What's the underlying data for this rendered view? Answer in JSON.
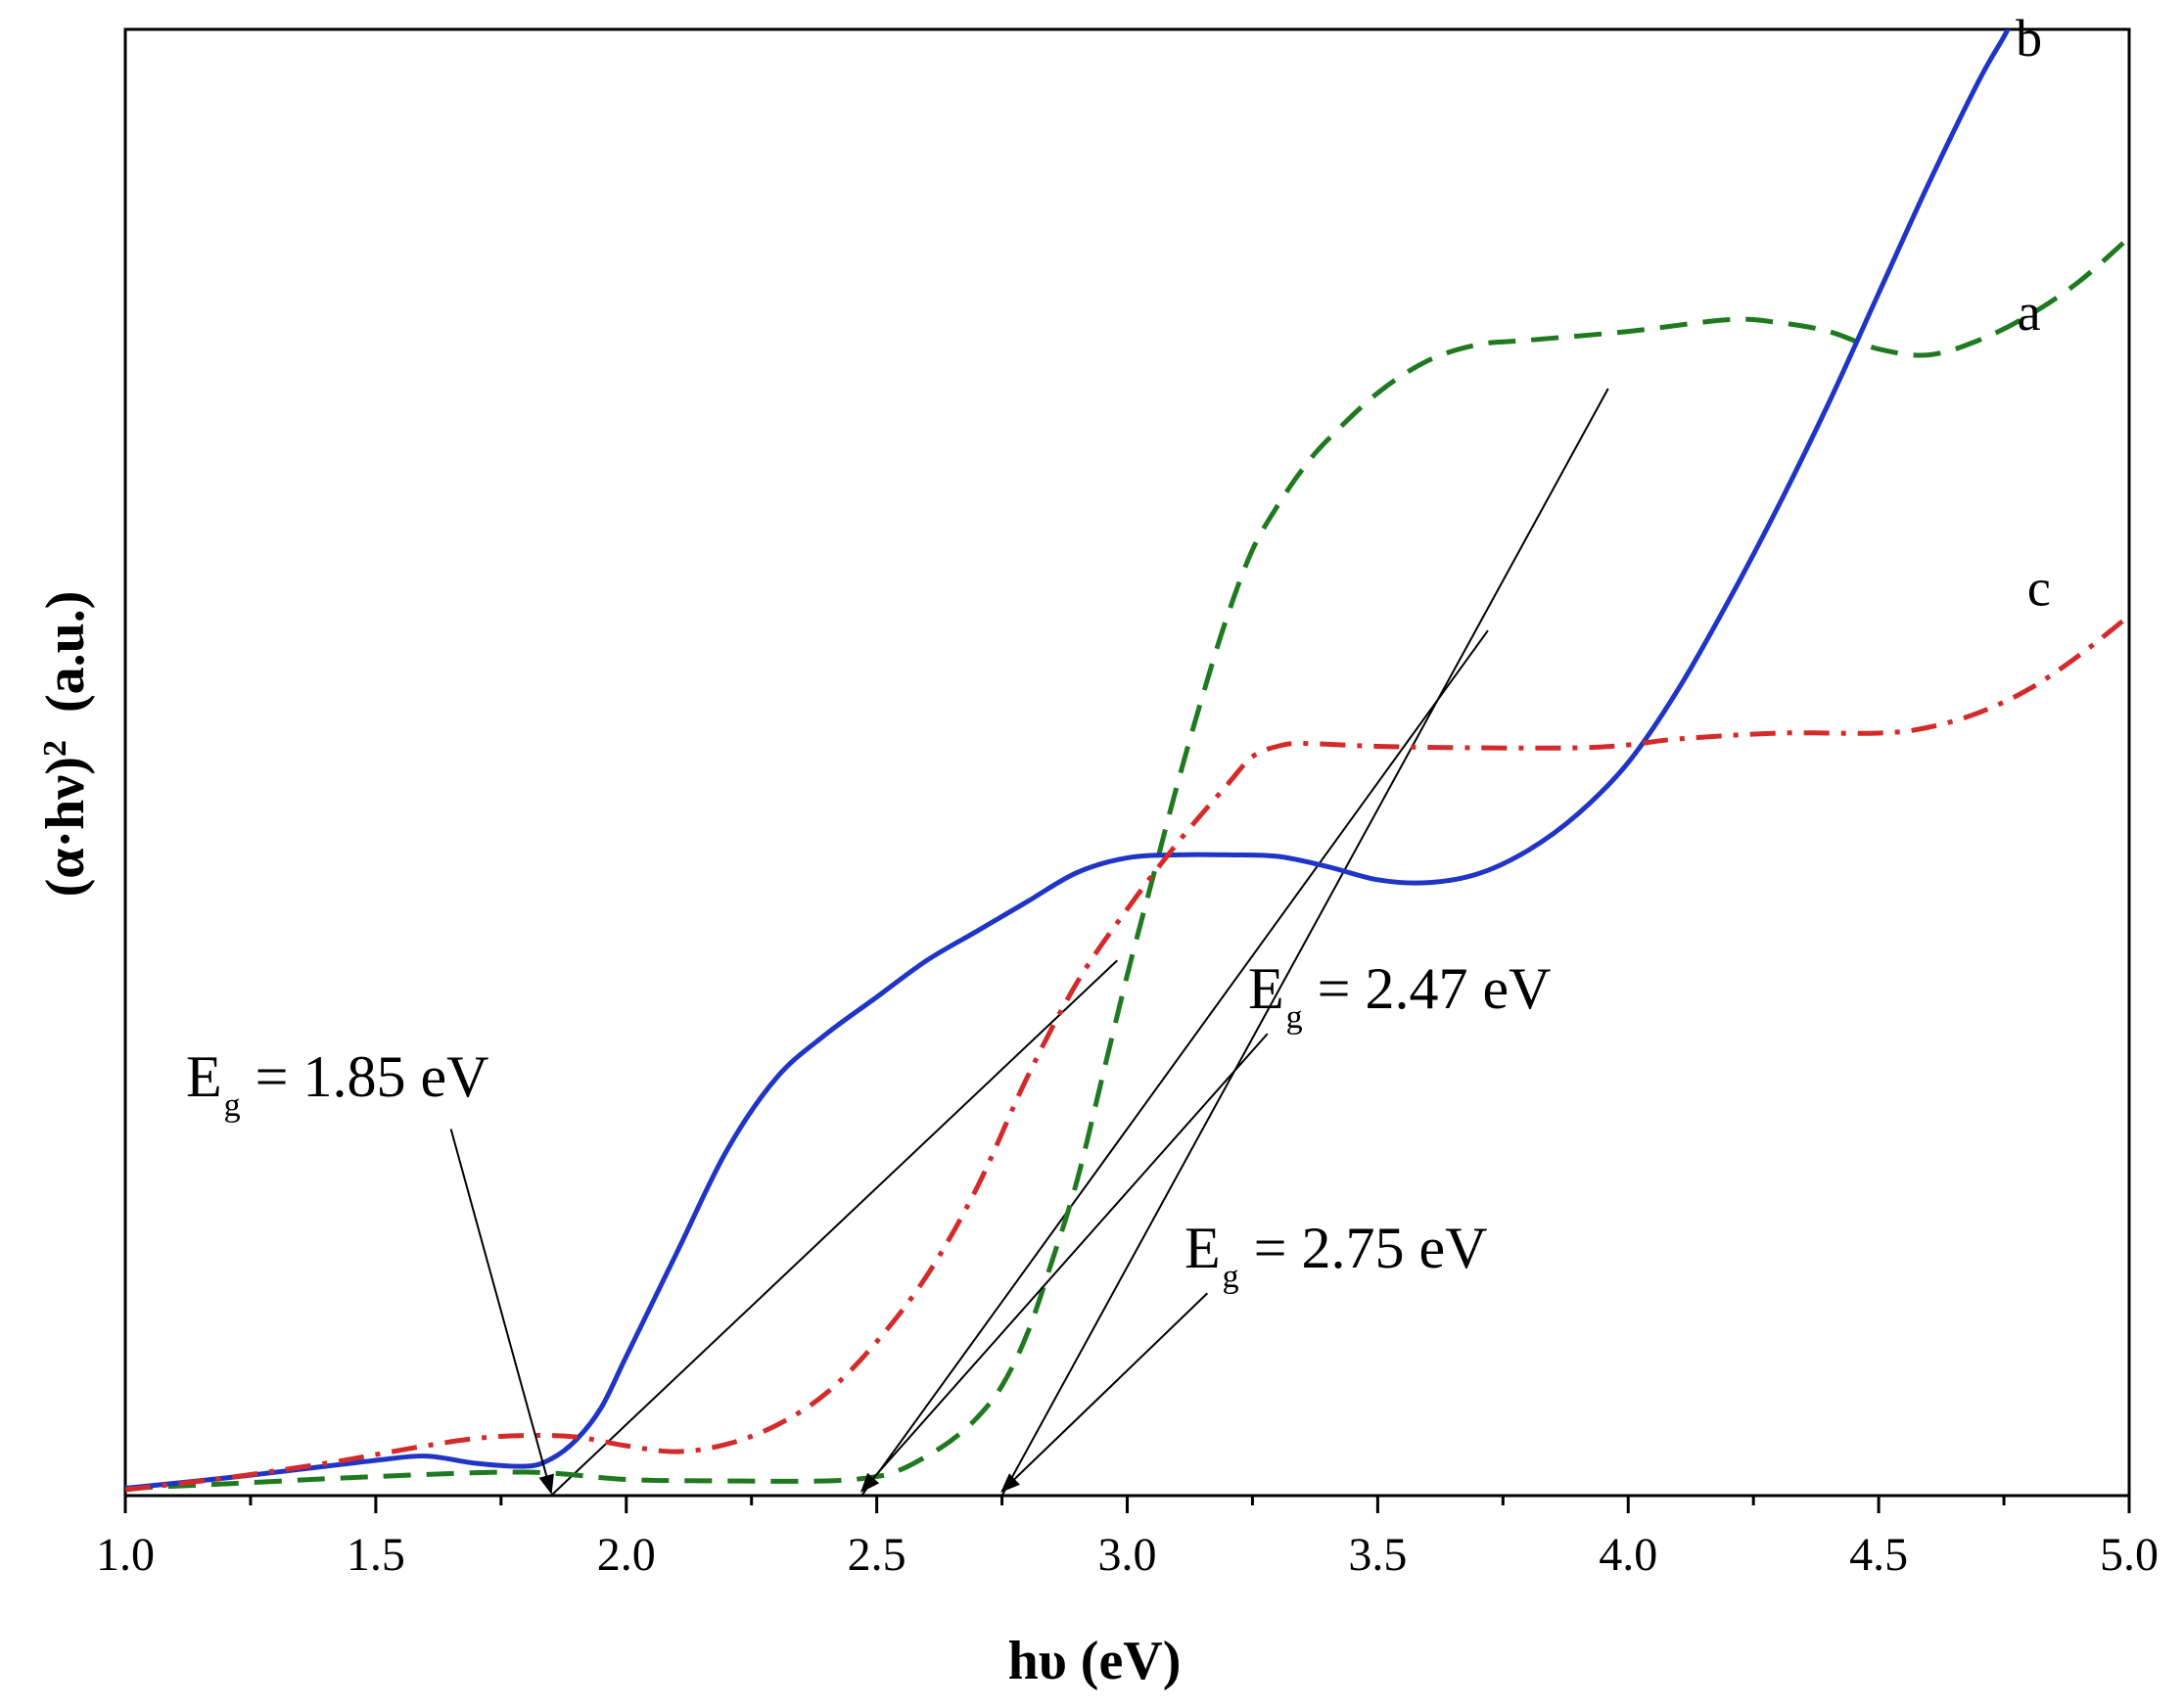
{
  "chart_data": {
    "type": "line",
    "title": "",
    "xlabel": "hυ (eV)",
    "ylabel_main": "(α·hν)",
    "ylabel_sup": "2",
    "ylabel_unit": "(a.u.)",
    "xlim": [
      1.0,
      5.0
    ],
    "ylim": [
      0,
      100
    ],
    "x_ticks": [
      "1.0",
      "1.5",
      "2.0",
      "2.5",
      "3.0",
      "3.5",
      "4.0",
      "4.5",
      "5.0"
    ],
    "x_tick_values": [
      1.0,
      1.5,
      2.0,
      2.5,
      3.0,
      3.5,
      4.0,
      4.5,
      5.0
    ],
    "grid": false,
    "series": [
      {
        "name": "a",
        "color": "#1f7a1f",
        "style": "dashed",
        "x": [
          1.0,
          1.2,
          1.5,
          1.8,
          2.0,
          2.2,
          2.4,
          2.5,
          2.55,
          2.6,
          2.65,
          2.7,
          2.75,
          2.8,
          2.85,
          2.9,
          2.95,
          3.0,
          3.05,
          3.1,
          3.15,
          3.2,
          3.25,
          3.3,
          3.35,
          3.4,
          3.5,
          3.6,
          3.7,
          3.8,
          4.0,
          4.2,
          4.3,
          4.4,
          4.5,
          4.6,
          4.7,
          4.8,
          4.9,
          5.0
        ],
        "y": [
          0.5,
          0.8,
          1.3,
          1.6,
          1.1,
          1.0,
          1.0,
          1.3,
          1.8,
          2.7,
          3.8,
          5.3,
          7.5,
          11.0,
          16.0,
          21.5,
          28.5,
          35.5,
          42.0,
          48.5,
          54.5,
          60.0,
          64.5,
          67.5,
          70.0,
          72.0,
          75.2,
          77.4,
          78.5,
          78.8,
          79.4,
          80.2,
          80.0,
          79.4,
          78.2,
          77.8,
          78.8,
          80.5,
          82.8,
          85.8
        ]
      },
      {
        "name": "b",
        "color": "#1f35c6",
        "style": "solid",
        "x": [
          1.0,
          1.2,
          1.4,
          1.5,
          1.6,
          1.7,
          1.8,
          1.85,
          1.9,
          1.95,
          2.0,
          2.1,
          2.2,
          2.3,
          2.4,
          2.5,
          2.6,
          2.7,
          2.8,
          2.9,
          3.0,
          3.1,
          3.2,
          3.3,
          3.4,
          3.5,
          3.6,
          3.7,
          3.8,
          3.9,
          4.0,
          4.1,
          4.2,
          4.3,
          4.4,
          4.5,
          4.6,
          4.7,
          4.75,
          4.78
        ],
        "y": [
          0.5,
          1.2,
          2.0,
          2.4,
          2.7,
          2.2,
          2.0,
          2.5,
          3.8,
          6.0,
          9.5,
          16.5,
          23.5,
          28.5,
          31.5,
          34.0,
          36.5,
          38.5,
          40.5,
          42.5,
          43.5,
          43.7,
          43.7,
          43.6,
          42.9,
          42.0,
          41.8,
          42.4,
          44.0,
          46.5,
          50.0,
          55.0,
          61.0,
          67.5,
          74.5,
          82.0,
          89.5,
          96.5,
          99.5,
          101.5
        ]
      },
      {
        "name": "c",
        "color": "#d42a2a",
        "style": "dashdot",
        "x": [
          1.0,
          1.2,
          1.4,
          1.5,
          1.6,
          1.7,
          1.8,
          1.9,
          2.0,
          2.1,
          2.2,
          2.3,
          2.4,
          2.5,
          2.6,
          2.7,
          2.8,
          2.9,
          3.0,
          3.1,
          3.2,
          3.25,
          3.3,
          3.35,
          3.5,
          3.7,
          3.9,
          4.0,
          4.1,
          4.3,
          4.5,
          4.6,
          4.7,
          4.8,
          4.9,
          5.0
        ],
        "y": [
          0.4,
          1.2,
          2.2,
          2.8,
          3.4,
          3.9,
          4.1,
          4.0,
          3.4,
          3.0,
          3.5,
          4.8,
          7.0,
          10.5,
          15.0,
          21.0,
          28.5,
          35.0,
          40.0,
          44.5,
          48.5,
          50.4,
          51.1,
          51.3,
          51.1,
          51.0,
          51.0,
          51.2,
          51.6,
          52.0,
          52.0,
          52.4,
          53.4,
          55.0,
          57.3,
          60.0
        ]
      }
    ],
    "tangent_lines": [
      {
        "x": [
          1.85,
          2.98
        ],
        "y": [
          0,
          36.5
        ]
      },
      {
        "x": [
          2.47,
          3.72
        ],
        "y": [
          0,
          59
        ]
      },
      {
        "x": [
          2.75,
          3.96
        ],
        "y": [
          0,
          75.5
        ]
      }
    ],
    "curve_labels": [
      {
        "text": "a",
        "x": 4.8,
        "y": 79.5
      },
      {
        "text": "b",
        "x": 4.8,
        "y": 98.2
      },
      {
        "text": "c",
        "x": 4.82,
        "y": 60.7
      }
    ],
    "annotations": [
      {
        "symbol": "E",
        "sub": "g",
        "text": " = 1.85 eV",
        "arrow_from_x": 1.65,
        "arrow_from_y": 25.0,
        "arrow_to_x": 1.85,
        "arrow_to_y": 0.2
      },
      {
        "symbol": "E",
        "sub": "g",
        "text": " = 2.47 eV",
        "arrow_from_x": 3.28,
        "arrow_from_y": 31.5,
        "arrow_to_x": 2.47,
        "arrow_to_y": 0.3
      },
      {
        "symbol": "E",
        "sub": "g",
        "text": " = 2.75 eV",
        "arrow_from_x": 3.16,
        "arrow_from_y": 13.8,
        "arrow_to_x": 2.75,
        "arrow_to_y": 0.3
      }
    ]
  }
}
